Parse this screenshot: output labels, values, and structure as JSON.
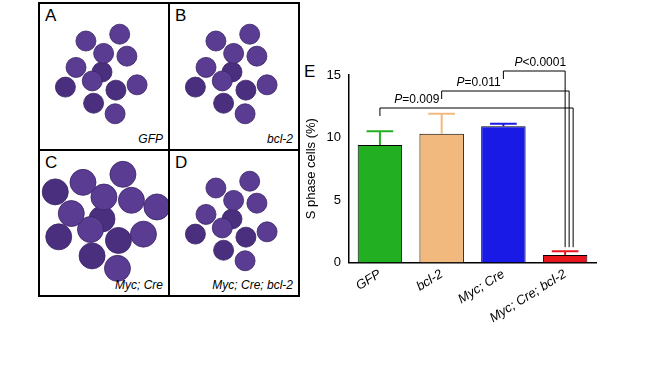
{
  "image_panels": [
    {
      "label": "A",
      "caption": "GFP"
    },
    {
      "label": "B",
      "caption": "bcl-2"
    },
    {
      "label": "C",
      "caption": "Myc; Cre"
    },
    {
      "label": "D",
      "caption": "Myc; Cre; bcl-2"
    }
  ],
  "chart_data": {
    "type": "bar",
    "panel_label": "E",
    "y_label": "S phase cells (%)",
    "categories": [
      "GFP",
      "bcl-2",
      "Myc; Cre",
      "Myc; Cre; bcl-2"
    ],
    "values": [
      9.4,
      10.3,
      10.9,
      0.6
    ],
    "errors": [
      1.1,
      1.6,
      0.2,
      0.3
    ],
    "colors": [
      "#22b022",
      "#f2b97e",
      "#1a1ae6",
      "#e8161c"
    ],
    "ylim": [
      0,
      15
    ],
    "yticks": [
      0,
      5,
      10,
      15
    ],
    "grid": false,
    "comparisons": [
      {
        "from": "GFP",
        "to": "Myc; Cre; bcl-2",
        "label": "P=0.009"
      },
      {
        "from": "bcl-2",
        "to": "Myc; Cre; bcl-2",
        "label": "P=0.011"
      },
      {
        "from": "Myc; Cre",
        "to": "Myc; Cre; bcl-2",
        "label": "P<0.0001"
      }
    ]
  }
}
